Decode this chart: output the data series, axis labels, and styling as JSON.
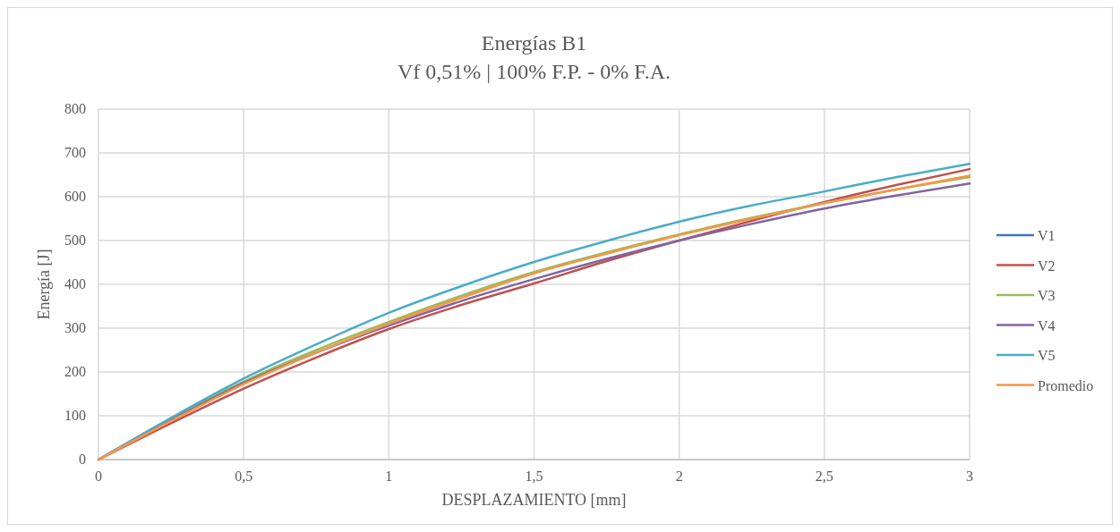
{
  "chart_data": {
    "type": "line",
    "title": "Energías  B1",
    "subtitle": "Vf  0,51% | 100% F.P. - 0% F.A.",
    "xlabel": "DESPLAZAMIENTO  [mm]",
    "ylabel": "Energía [J]",
    "x": [
      0,
      0.25,
      0.5,
      0.75,
      1,
      1.25,
      1.5,
      1.75,
      2,
      2.25,
      2.5,
      2.75,
      3
    ],
    "series": [
      {
        "name": "V1",
        "color": "#4472c4",
        "values": [
          null,
          null,
          null,
          null,
          null,
          null,
          null,
          null,
          null,
          null,
          null,
          null,
          null
        ]
      },
      {
        "name": "V2",
        "color": "#c0504d",
        "values": [
          0,
          83,
          162,
          233,
          298,
          353,
          402,
          453,
          500,
          545,
          588,
          627,
          663
        ]
      },
      {
        "name": "V3",
        "color": "#9bbb59",
        "values": [
          0,
          92,
          178,
          250,
          314,
          374,
          428,
          473,
          514,
          552,
          586,
          617,
          645
        ]
      },
      {
        "name": "V4",
        "color": "#8064a2",
        "values": [
          0,
          90,
          175,
          244,
          306,
          362,
          412,
          458,
          500,
          538,
          573,
          603,
          630
        ]
      },
      {
        "name": "V5",
        "color": "#4bacc6",
        "values": [
          0,
          95,
          185,
          263,
          335,
          396,
          451,
          499,
          543,
          580,
          612,
          645,
          675
        ]
      },
      {
        "name": "Promedio",
        "color": "#f79646",
        "values": [
          0,
          88,
          172,
          244,
          310,
          369,
          425,
          470,
          512,
          550,
          585,
          617,
          648
        ]
      }
    ],
    "xlim": [
      0,
      3
    ],
    "xticks": [
      0,
      {
        "value": 0.5,
        "label": "0,5"
      },
      1,
      {
        "value": 1.5,
        "label": "1,5"
      },
      2,
      {
        "value": 2.5,
        "label": "2,5"
      },
      3
    ],
    "ylim": [
      0,
      800
    ],
    "yticks": [
      0,
      100,
      200,
      300,
      400,
      500,
      600,
      700,
      800
    ],
    "grid": true,
    "legend": "right",
    "marker": "none",
    "line_style": "solid"
  }
}
